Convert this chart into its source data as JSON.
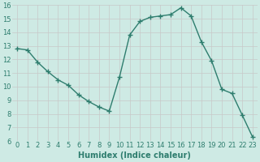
{
  "x": [
    0,
    1,
    2,
    3,
    4,
    5,
    6,
    7,
    8,
    9,
    10,
    11,
    12,
    13,
    14,
    15,
    16,
    17,
    18,
    19,
    20,
    21,
    22,
    23
  ],
  "y": [
    12.8,
    12.7,
    11.8,
    11.1,
    10.5,
    10.1,
    9.4,
    8.9,
    8.5,
    8.2,
    10.7,
    13.8,
    14.8,
    15.1,
    15.2,
    15.3,
    15.8,
    15.2,
    13.3,
    11.9,
    9.8,
    9.5,
    7.9,
    6.3
  ],
  "line_color": "#2e7d6e",
  "marker": "+",
  "marker_size": 4,
  "bg_color": "#ceeae4",
  "grid_color": "#c8c8c8",
  "xlabel": "Humidex (Indice chaleur)",
  "ylim": [
    6,
    16
  ],
  "xlim": [
    -0.5,
    23.5
  ],
  "yticks": [
    6,
    7,
    8,
    9,
    10,
    11,
    12,
    13,
    14,
    15,
    16
  ],
  "xticks": [
    0,
    1,
    2,
    3,
    4,
    5,
    6,
    7,
    8,
    9,
    10,
    11,
    12,
    13,
    14,
    15,
    16,
    17,
    18,
    19,
    20,
    21,
    22,
    23
  ],
  "xlabel_fontsize": 7,
  "tick_fontsize": 6,
  "tick_color": "#2e7d6e",
  "linewidth": 1.0
}
